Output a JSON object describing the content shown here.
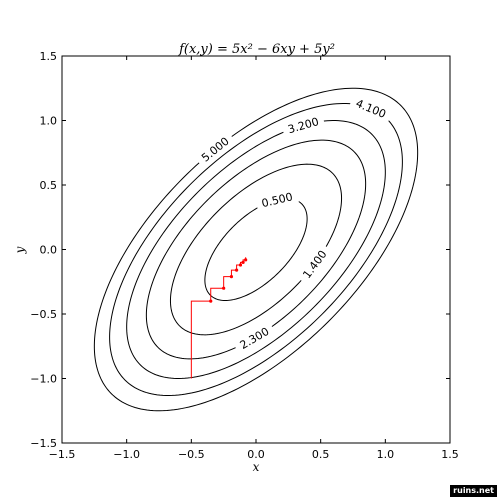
{
  "chart_data": {
    "type": "contour",
    "title": "f(x,y) = 5x² − 6xy + 5y²",
    "xlabel": "x",
    "ylabel": "y",
    "xlim": [
      -1.5,
      1.5
    ],
    "ylim": [
      -1.5,
      1.5
    ],
    "xticks": [
      -1.5,
      -1.0,
      -0.5,
      0.0,
      0.5,
      1.0,
      1.5
    ],
    "yticks": [
      -1.5,
      -1.0,
      -0.5,
      0.0,
      0.5,
      1.0,
      1.5
    ],
    "xtick_labels": [
      "−1.5",
      "−1.0",
      "−0.5",
      "0.0",
      "0.5",
      "1.0",
      "1.5"
    ],
    "ytick_labels": [
      "−1.5",
      "−1.0",
      "−0.5",
      "0.0",
      "0.5",
      "1.0",
      "1.5"
    ],
    "grid": false,
    "contour_levels": [
      {
        "level": 0.5,
        "label": "0.500"
      },
      {
        "level": 1.4,
        "label": "1.400"
      },
      {
        "level": 2.3,
        "label": "2.300"
      },
      {
        "level": 3.2,
        "label": "3.200"
      },
      {
        "level": 4.1,
        "label": "4.100"
      },
      {
        "level": 5.0,
        "label": "5.000"
      }
    ],
    "path": {
      "color": "#ff0000",
      "x": [
        -0.5,
        -0.5,
        -0.35,
        -0.35,
        -0.25,
        -0.25,
        -0.19,
        -0.19,
        -0.15,
        -0.15,
        -0.12,
        -0.12,
        -0.1,
        -0.1,
        -0.08,
        -0.08
      ],
      "y": [
        -1.0,
        -0.4,
        -0.4,
        -0.3,
        -0.3,
        -0.21,
        -0.21,
        -0.16,
        -0.16,
        -0.12,
        -0.12,
        -0.1,
        -0.1,
        -0.08,
        -0.08,
        -0.06
      ]
    }
  },
  "watermark": "ruins.net"
}
